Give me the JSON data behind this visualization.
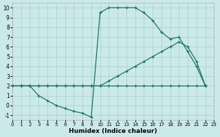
{
  "xlabel": "Humidex (Indice chaleur)",
  "bg_color": "#cce9e9",
  "grid_color": "#aad0d0",
  "line_color": "#1a6e62",
  "xlim": [
    0,
    23
  ],
  "ylim": [
    -1.5,
    10.5
  ],
  "xticks": [
    0,
    1,
    2,
    3,
    4,
    5,
    6,
    7,
    8,
    9,
    10,
    11,
    12,
    13,
    14,
    15,
    16,
    17,
    18,
    19,
    20,
    21,
    22,
    23
  ],
  "yticks": [
    -1,
    0,
    1,
    2,
    3,
    4,
    5,
    6,
    7,
    8,
    9,
    10
  ],
  "curve1_x": [
    0,
    1,
    2,
    3,
    4,
    5,
    6,
    7,
    8,
    9,
    10,
    11,
    12,
    13,
    14,
    15,
    16,
    17,
    18,
    19,
    20,
    21,
    22
  ],
  "curve1_y": [
    2,
    2,
    2,
    1,
    0.5,
    0,
    -0.3,
    -0.6,
    -0.8,
    -1.2,
    9.5,
    10,
    10,
    10,
    10,
    9.5,
    8.7,
    7.5,
    6.8,
    7.0,
    5.5,
    4.0,
    2.0
  ],
  "curve2_x": [
    0,
    1,
    2,
    3,
    4,
    5,
    6,
    7,
    8,
    9,
    10,
    11,
    12,
    13,
    14,
    15,
    16,
    17,
    18,
    19,
    20,
    21,
    22
  ],
  "curve2_y": [
    2,
    2,
    2,
    2,
    2,
    2,
    2,
    2,
    2,
    2,
    2,
    2.5,
    3,
    3.5,
    4,
    4.5,
    5,
    5.5,
    6,
    6.5,
    6,
    4.5,
    2.0
  ],
  "curve3_x": [
    0,
    1,
    2,
    3,
    4,
    5,
    6,
    7,
    8,
    9,
    10,
    11,
    12,
    13,
    14,
    15,
    16,
    17,
    18,
    19,
    20,
    21,
    22
  ],
  "curve3_y": [
    2,
    2,
    2,
    2,
    2,
    2,
    2,
    2,
    2,
    2,
    2,
    2,
    2,
    2,
    2,
    2,
    2,
    2,
    2,
    2,
    2,
    2,
    2
  ]
}
